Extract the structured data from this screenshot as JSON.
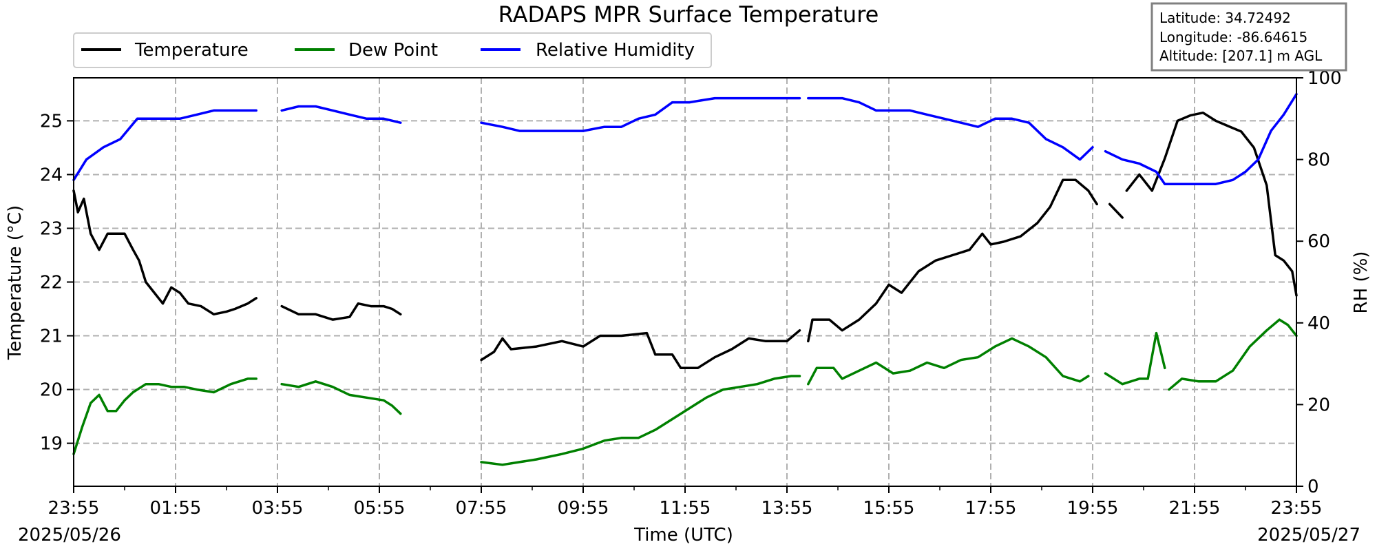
{
  "chart_data": {
    "type": "line",
    "title": "RADAPS MPR Surface Temperature",
    "xlabel": "Time (UTC)",
    "ylabel_left": "Temperature ($^\\circ$C)",
    "ylabel_left_display": "Temperature (°C)",
    "ylabel_right": "RH (%)",
    "date_start": "2025/05/26",
    "date_end": "2025/05/27",
    "x_ticks": [
      "23:55",
      "01:55",
      "03:55",
      "05:55",
      "07:55",
      "09:55",
      "11:55",
      "13:55",
      "15:55",
      "17:55",
      "19:55",
      "21:55",
      "23:55"
    ],
    "ylim_left": [
      18.2,
      25.8
    ],
    "y_ticks_left": [
      19,
      20,
      21,
      22,
      23,
      24,
      25
    ],
    "ylim_right": [
      0,
      100
    ],
    "y_ticks_right": [
      0,
      20,
      40,
      60,
      80,
      100
    ],
    "grid": true,
    "legend_position": "top-left",
    "info_box": {
      "latitude": "Latitude: 34.72492",
      "longitude": "Longitude: -86.64615",
      "altitude": "Altitude: [207.1] m AGL"
    },
    "series": [
      {
        "name": "Temperature",
        "axis": "left",
        "color": "#000000",
        "segments": [
          [
            [
              "23:55",
              23.7
            ],
            [
              "00:00",
              23.3
            ],
            [
              "00:07",
              23.55
            ],
            [
              "00:15",
              22.9
            ],
            [
              "00:25",
              22.6
            ],
            [
              "00:35",
              22.9
            ],
            [
              "00:45",
              22.9
            ],
            [
              "00:55",
              22.9
            ],
            [
              "01:05",
              22.6
            ],
            [
              "01:12",
              22.4
            ],
            [
              "01:20",
              22.0
            ],
            [
              "01:30",
              21.8
            ],
            [
              "01:40",
              21.6
            ],
            [
              "01:50",
              21.9
            ],
            [
              "02:00",
              21.8
            ],
            [
              "02:10",
              21.6
            ],
            [
              "02:25",
              21.55
            ],
            [
              "02:40",
              21.4
            ],
            [
              "02:55",
              21.45
            ],
            [
              "03:05",
              21.5
            ],
            [
              "03:20",
              21.6
            ],
            [
              "03:30",
              21.7
            ]
          ],
          [
            [
              "04:00",
              21.55
            ],
            [
              "04:20",
              21.4
            ],
            [
              "04:40",
              21.4
            ],
            [
              "05:00",
              21.3
            ],
            [
              "05:20",
              21.35
            ],
            [
              "05:30",
              21.6
            ],
            [
              "05:45",
              21.55
            ],
            [
              "06:00",
              21.55
            ],
            [
              "06:10",
              21.5
            ],
            [
              "06:20",
              21.4
            ]
          ],
          [
            [
              "07:55",
              20.55
            ],
            [
              "08:10",
              20.7
            ],
            [
              "08:20",
              20.95
            ],
            [
              "08:30",
              20.75
            ],
            [
              "09:00",
              20.8
            ],
            [
              "09:30",
              20.9
            ],
            [
              "09:55",
              20.8
            ],
            [
              "10:15",
              21.0
            ],
            [
              "10:40",
              21.0
            ],
            [
              "11:10",
              21.05
            ],
            [
              "11:20",
              20.65
            ],
            [
              "11:40",
              20.65
            ],
            [
              "11:50",
              20.4
            ],
            [
              "12:10",
              20.4
            ],
            [
              "12:30",
              20.6
            ],
            [
              "12:50",
              20.75
            ],
            [
              "13:10",
              20.95
            ],
            [
              "13:30",
              20.9
            ],
            [
              "13:55",
              20.9
            ],
            [
              "14:10",
              21.1
            ]
          ],
          [
            [
              "14:20",
              20.9
            ],
            [
              "14:25",
              21.3
            ],
            [
              "14:45",
              21.3
            ],
            [
              "15:00",
              21.1
            ],
            [
              "15:20",
              21.3
            ],
            [
              "15:40",
              21.6
            ],
            [
              "15:55",
              21.95
            ],
            [
              "16:10",
              21.8
            ],
            [
              "16:30",
              22.2
            ],
            [
              "16:50",
              22.4
            ],
            [
              "17:10",
              22.5
            ],
            [
              "17:30",
              22.6
            ],
            [
              "17:45",
              22.9
            ],
            [
              "17:55",
              22.7
            ],
            [
              "18:10",
              22.75
            ],
            [
              "18:30",
              22.85
            ],
            [
              "18:50",
              23.1
            ],
            [
              "19:05",
              23.4
            ],
            [
              "19:20",
              23.9
            ],
            [
              "19:35",
              23.9
            ],
            [
              "19:50",
              23.7
            ],
            [
              "20:00",
              23.45
            ]
          ],
          [
            [
              "20:15",
              23.45
            ],
            [
              "20:30",
              23.2
            ]
          ],
          [
            [
              "20:35",
              23.7
            ],
            [
              "20:50",
              24.0
            ],
            [
              "21:05",
              23.7
            ],
            [
              "21:20",
              24.3
            ],
            [
              "21:35",
              25.0
            ],
            [
              "21:50",
              25.1
            ],
            [
              "22:05",
              25.15
            ],
            [
              "22:20",
              25.0
            ],
            [
              "22:35",
              24.9
            ],
            [
              "22:50",
              24.8
            ],
            [
              "23:05",
              24.5
            ],
            [
              "23:20",
              23.8
            ],
            [
              "23:30",
              22.5
            ],
            [
              "23:40",
              22.4
            ],
            [
              "23:50",
              22.2
            ],
            [
              "23:55",
              21.75
            ]
          ]
        ]
      },
      {
        "name": "Dew Point",
        "axis": "left",
        "color": "#008000",
        "segments": [
          [
            [
              "23:55",
              18.8
            ],
            [
              "00:05",
              19.3
            ],
            [
              "00:15",
              19.75
            ],
            [
              "00:25",
              19.9
            ],
            [
              "00:35",
              19.6
            ],
            [
              "00:45",
              19.6
            ],
            [
              "00:55",
              19.8
            ],
            [
              "01:05",
              19.95
            ],
            [
              "01:20",
              20.1
            ],
            [
              "01:35",
              20.1
            ],
            [
              "01:50",
              20.05
            ],
            [
              "02:05",
              20.05
            ],
            [
              "02:20",
              20.0
            ],
            [
              "02:40",
              19.95
            ],
            [
              "03:00",
              20.1
            ],
            [
              "03:20",
              20.2
            ],
            [
              "03:30",
              20.2
            ]
          ],
          [
            [
              "04:00",
              20.1
            ],
            [
              "04:20",
              20.05
            ],
            [
              "04:40",
              20.15
            ],
            [
              "05:00",
              20.05
            ],
            [
              "05:20",
              19.9
            ],
            [
              "05:40",
              19.85
            ],
            [
              "06:00",
              19.8
            ],
            [
              "06:10",
              19.7
            ],
            [
              "06:20",
              19.55
            ]
          ],
          [
            [
              "07:55",
              18.65
            ],
            [
              "08:20",
              18.6
            ],
            [
              "08:40",
              18.65
            ],
            [
              "09:00",
              18.7
            ],
            [
              "09:30",
              18.8
            ],
            [
              "09:55",
              18.9
            ],
            [
              "10:20",
              19.05
            ],
            [
              "10:40",
              19.1
            ],
            [
              "11:00",
              19.1
            ],
            [
              "11:20",
              19.25
            ],
            [
              "11:40",
              19.45
            ],
            [
              "12:00",
              19.65
            ],
            [
              "12:20",
              19.85
            ],
            [
              "12:40",
              20.0
            ],
            [
              "13:00",
              20.05
            ],
            [
              "13:20",
              20.1
            ],
            [
              "13:40",
              20.2
            ],
            [
              "14:00",
              20.25
            ],
            [
              "14:10",
              20.25
            ]
          ],
          [
            [
              "14:20",
              20.1
            ],
            [
              "14:30",
              20.4
            ],
            [
              "14:50",
              20.4
            ],
            [
              "15:00",
              20.2
            ],
            [
              "15:20",
              20.35
            ],
            [
              "15:40",
              20.5
            ],
            [
              "16:00",
              20.3
            ],
            [
              "16:20",
              20.35
            ],
            [
              "16:40",
              20.5
            ],
            [
              "17:00",
              20.4
            ],
            [
              "17:20",
              20.55
            ],
            [
              "17:40",
              20.6
            ],
            [
              "18:00",
              20.8
            ],
            [
              "18:20",
              20.95
            ],
            [
              "18:40",
              20.8
            ],
            [
              "19:00",
              20.6
            ],
            [
              "19:20",
              20.25
            ],
            [
              "19:40",
              20.15
            ],
            [
              "19:50",
              20.25
            ]
          ],
          [
            [
              "20:10",
              20.3
            ],
            [
              "20:30",
              20.1
            ],
            [
              "20:50",
              20.2
            ],
            [
              "21:00",
              20.2
            ],
            [
              "21:10",
              21.05
            ],
            [
              "21:20",
              20.4
            ]
          ],
          [
            [
              "21:25",
              20.0
            ],
            [
              "21:40",
              20.2
            ],
            [
              "22:00",
              20.15
            ],
            [
              "22:20",
              20.15
            ],
            [
              "22:40",
              20.35
            ],
            [
              "23:00",
              20.8
            ],
            [
              "23:20",
              21.1
            ],
            [
              "23:35",
              21.3
            ],
            [
              "23:45",
              21.2
            ],
            [
              "23:55",
              21.0
            ]
          ]
        ]
      },
      {
        "name": "Relative Humidity",
        "axis": "right",
        "color": "#0000ff",
        "segments": [
          [
            [
              "23:55",
              75
            ],
            [
              "00:10",
              80
            ],
            [
              "00:30",
              83
            ],
            [
              "00:50",
              85
            ],
            [
              "01:10",
              90
            ],
            [
              "01:20",
              90
            ],
            [
              "01:40",
              90
            ],
            [
              "02:00",
              90
            ],
            [
              "02:20",
              91
            ],
            [
              "02:40",
              92
            ],
            [
              "03:00",
              92
            ],
            [
              "03:20",
              92
            ],
            [
              "03:30",
              92
            ]
          ],
          [
            [
              "04:00",
              92
            ],
            [
              "04:20",
              93
            ],
            [
              "04:40",
              93
            ],
            [
              "05:00",
              92
            ],
            [
              "05:20",
              91
            ],
            [
              "05:40",
              90
            ],
            [
              "06:00",
              90
            ],
            [
              "06:20",
              89
            ]
          ],
          [
            [
              "07:55",
              89
            ],
            [
              "08:20",
              88
            ],
            [
              "08:40",
              87
            ],
            [
              "09:00",
              87
            ],
            [
              "09:30",
              87
            ],
            [
              "09:55",
              87
            ],
            [
              "10:20",
              88
            ],
            [
              "10:40",
              88
            ],
            [
              "11:00",
              90
            ],
            [
              "11:20",
              91
            ],
            [
              "11:40",
              94
            ],
            [
              "12:00",
              94
            ],
            [
              "12:30",
              95
            ],
            [
              "13:00",
              95
            ],
            [
              "13:30",
              95
            ],
            [
              "14:00",
              95
            ],
            [
              "14:10",
              95
            ]
          ],
          [
            [
              "14:20",
              95
            ],
            [
              "14:45",
              95
            ],
            [
              "15:00",
              95
            ],
            [
              "15:20",
              94
            ],
            [
              "15:40",
              92
            ],
            [
              "16:00",
              92
            ],
            [
              "16:20",
              92
            ],
            [
              "16:40",
              91
            ],
            [
              "17:00",
              90
            ],
            [
              "17:20",
              89
            ],
            [
              "17:40",
              88
            ],
            [
              "18:00",
              90
            ],
            [
              "18:20",
              90
            ],
            [
              "18:40",
              89
            ],
            [
              "19:00",
              85
            ],
            [
              "19:20",
              83
            ],
            [
              "19:40",
              80
            ],
            [
              "19:55",
              83
            ]
          ],
          [
            [
              "20:10",
              82
            ],
            [
              "20:30",
              80
            ],
            [
              "20:50",
              79
            ],
            [
              "21:00",
              78
            ],
            [
              "21:10",
              77
            ],
            [
              "21:20",
              74
            ],
            [
              "21:40",
              74
            ],
            [
              "22:00",
              74
            ],
            [
              "22:20",
              74
            ],
            [
              "22:40",
              75
            ],
            [
              "22:55",
              77
            ],
            [
              "23:10",
              80
            ],
            [
              "23:25",
              87
            ],
            [
              "23:40",
              91
            ],
            [
              "23:55",
              96
            ]
          ]
        ]
      }
    ]
  }
}
